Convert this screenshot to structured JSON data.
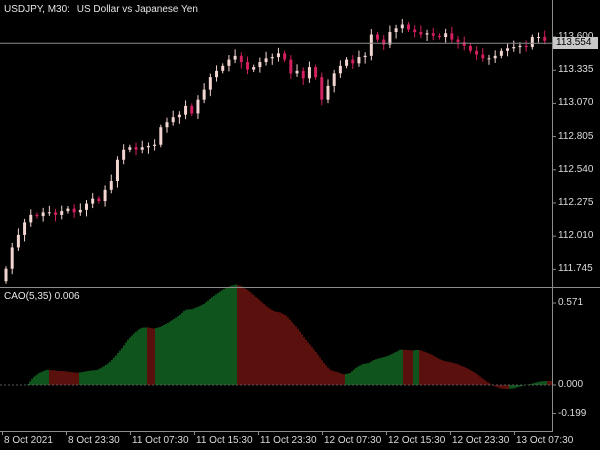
{
  "header": {
    "symbol": "USDJPY, M30:",
    "description": "US Dollar vs Japanese Yen"
  },
  "current_price": "113.554",
  "indicator": {
    "name": "CAO(5,35)",
    "value": "0.006"
  },
  "colors": {
    "background": "#000000",
    "bull_candle": "#f2d5d0",
    "bear_candle": "#d21f5f",
    "histogram_up": "#1fa83a",
    "histogram_down": "#b3201a",
    "grid_line": "#8c8c8c"
  },
  "chart_data": [
    {
      "type": "candlestick",
      "title": "",
      "y_ticks": [
        "113.600",
        "113.335",
        "113.070",
        "112.805",
        "112.540",
        "112.275",
        "112.010",
        "111.745"
      ],
      "ylim": [
        111.62,
        113.8
      ],
      "current_price_line": 113.554,
      "x_tick_labels": [
        "8 Oct 2021",
        "8 Oct 23:30",
        "11 Oct 07:30",
        "11 Oct 15:30",
        "11 Oct 23:30",
        "12 Oct 07:30",
        "12 Oct 15:30",
        "12 Oct 23:30",
        "13 Oct 07:30"
      ],
      "closes": [
        111.75,
        111.92,
        112.02,
        112.12,
        112.18,
        112.17,
        112.2,
        112.2,
        112.18,
        112.21,
        112.23,
        112.2,
        112.22,
        112.27,
        112.31,
        112.29,
        112.38,
        112.45,
        112.62,
        112.7,
        112.72,
        112.7,
        112.72,
        112.73,
        112.74,
        112.88,
        112.92,
        112.96,
        112.98,
        113.05,
        112.99,
        113.1,
        113.18,
        113.28,
        113.33,
        113.37,
        113.42,
        113.45,
        113.4,
        113.34,
        113.36,
        113.4,
        113.43,
        113.44,
        113.47,
        113.42,
        113.31,
        113.33,
        113.27,
        113.36,
        113.28,
        113.1,
        113.21,
        113.31,
        113.37,
        113.42,
        113.39,
        113.44,
        113.45,
        113.62,
        113.58,
        113.54,
        113.64,
        113.67,
        113.7,
        113.66,
        113.64,
        113.62,
        113.63,
        113.61,
        113.6,
        113.63,
        113.58,
        113.56,
        113.53,
        113.49,
        113.46,
        113.43,
        113.43,
        113.45,
        113.49,
        113.51,
        113.52,
        113.53,
        113.52,
        113.6,
        113.6,
        113.57
      ]
    },
    {
      "type": "bar",
      "title": "",
      "series_name": "CAO(5,35)",
      "y_ticks": [
        "0.571",
        "0.000",
        "-0.199"
      ],
      "ylim": [
        -0.3,
        0.62
      ],
      "last_value": 0.006
    }
  ]
}
